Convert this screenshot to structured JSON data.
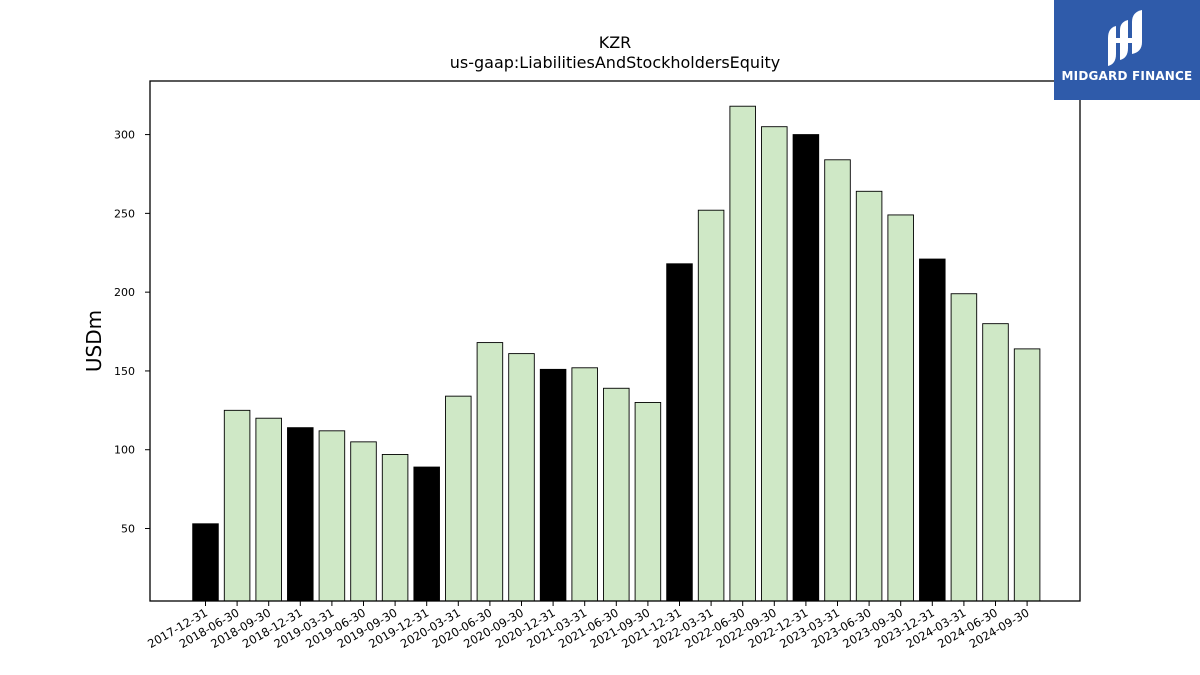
{
  "logo": {
    "text": "MIDGARD FINANCE"
  },
  "chart_data": {
    "type": "bar",
    "title": "KZR",
    "subtitle": "us-gaap:LiabilitiesAndStockholdersEquity",
    "xlabel": "",
    "ylabel": "USDm",
    "ylim": [
      4,
      334
    ],
    "yticks": [
      50,
      100,
      150,
      200,
      250,
      300
    ],
    "grid": false,
    "categories": [
      "2017-12-31",
      "2018-06-30",
      "2018-09-30",
      "2018-12-31",
      "2019-03-31",
      "2019-06-30",
      "2019-09-30",
      "2019-12-31",
      "2020-03-31",
      "2020-06-30",
      "2020-09-30",
      "2020-12-31",
      "2021-03-31",
      "2021-06-30",
      "2021-09-30",
      "2021-12-31",
      "2022-03-31",
      "2022-06-30",
      "2022-09-30",
      "2022-12-31",
      "2023-03-31",
      "2023-06-30",
      "2023-09-30",
      "2023-12-31",
      "2024-03-31",
      "2024-06-30",
      "2024-09-30"
    ],
    "values": [
      53,
      125,
      120,
      114,
      112,
      105,
      97,
      89,
      134,
      168,
      161,
      151,
      152,
      139,
      130,
      218,
      252,
      318,
      305,
      300,
      284,
      264,
      249,
      221,
      199,
      180,
      164
    ],
    "colors": {
      "annual": "#000000",
      "quarterly": "#cfe8c6",
      "edge": "#000000"
    },
    "annual_flags": [
      true,
      false,
      false,
      true,
      false,
      false,
      false,
      true,
      false,
      false,
      false,
      true,
      false,
      false,
      false,
      true,
      false,
      false,
      false,
      true,
      false,
      false,
      false,
      true,
      false,
      false,
      false
    ]
  }
}
